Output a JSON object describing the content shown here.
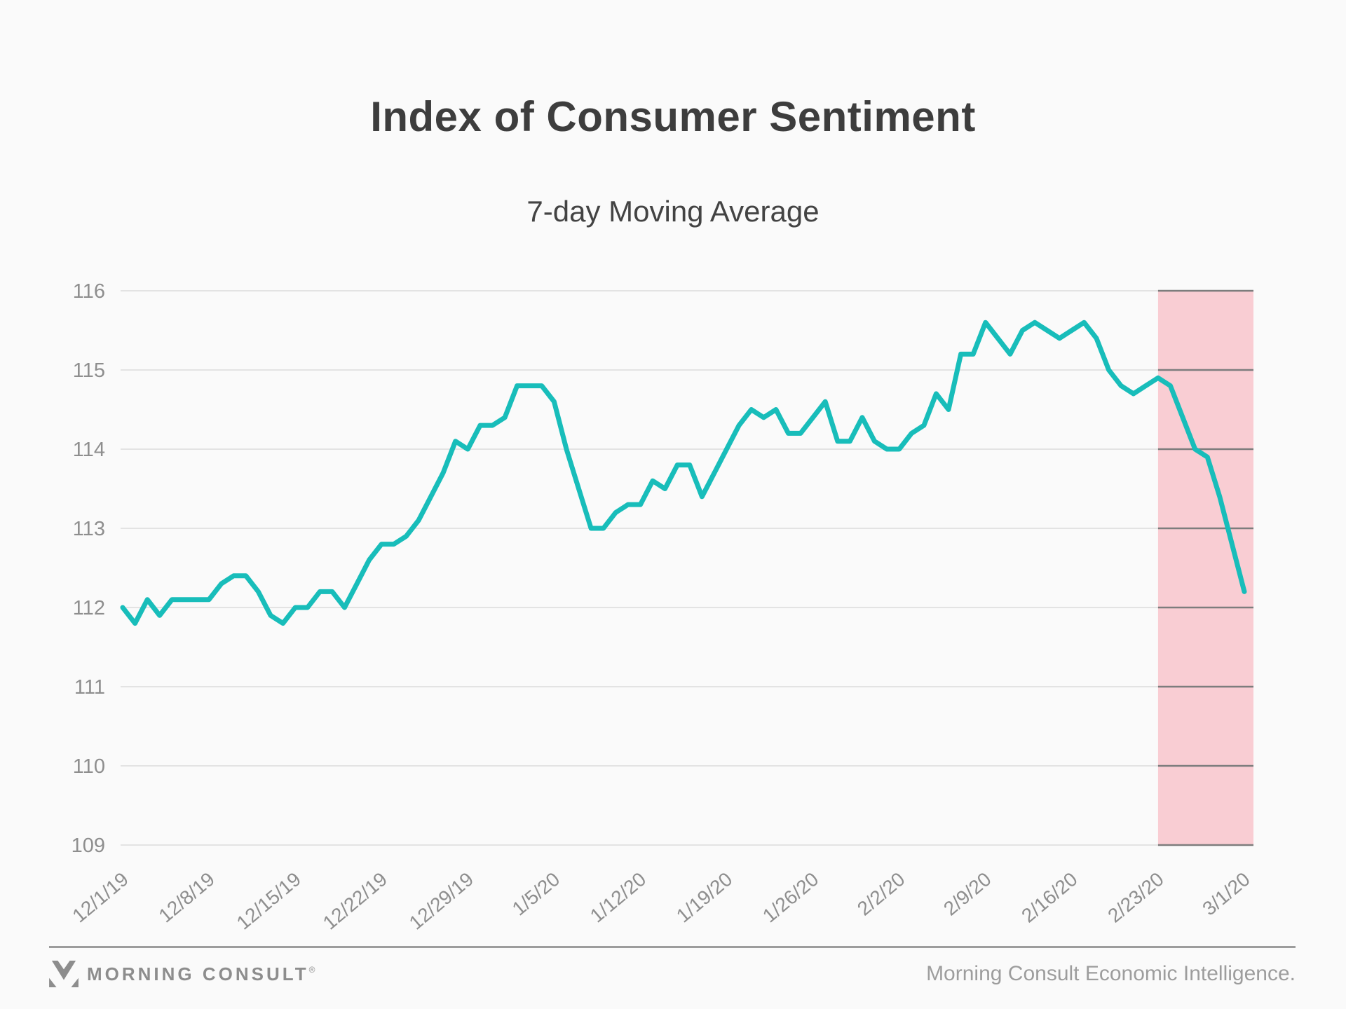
{
  "header": {
    "title": "Index of Consumer Sentiment",
    "subtitle": "7-day Moving Average"
  },
  "footer": {
    "brand": "MORNING CONSULT",
    "brand_reg": "®",
    "credit": "Morning Consult Economic Intelligence."
  },
  "colors": {
    "background": "#fafafa",
    "line": "#18bdba",
    "band": "#f9cdd3",
    "grid": "#e3e3e3",
    "grid_dark": "#7d7d7d",
    "axis_text": "#8e8e8e",
    "title_text": "#3d3d3d",
    "footer_text": "#9d9d9d"
  },
  "chart_data": {
    "type": "line",
    "title": "Index of Consumer Sentiment",
    "subtitle": "7-day Moving Average",
    "xlabel": "",
    "ylabel": "",
    "ylim": [
      109,
      116
    ],
    "yticks": [
      116,
      115,
      114,
      113,
      112,
      111,
      110,
      109
    ],
    "grid": true,
    "legend": "none",
    "frequency": "daily",
    "start_date": "12/1/19",
    "end_date": "3/1/20",
    "x_ticks": [
      {
        "index": 0,
        "label": "12/1/19"
      },
      {
        "index": 7,
        "label": "12/8/19"
      },
      {
        "index": 14,
        "label": "12/15/19"
      },
      {
        "index": 21,
        "label": "12/22/19"
      },
      {
        "index": 28,
        "label": "12/29/19"
      },
      {
        "index": 35,
        "label": "1/5/20"
      },
      {
        "index": 42,
        "label": "1/12/20"
      },
      {
        "index": 49,
        "label": "1/19/20"
      },
      {
        "index": 56,
        "label": "1/26/20"
      },
      {
        "index": 63,
        "label": "2/2/20"
      },
      {
        "index": 70,
        "label": "2/9/20"
      },
      {
        "index": 77,
        "label": "2/16/20"
      },
      {
        "index": 84,
        "label": "2/23/20"
      },
      {
        "index": 91,
        "label": "3/1/20"
      }
    ],
    "values": [
      112.0,
      111.8,
      112.1,
      111.9,
      112.1,
      112.1,
      112.1,
      112.1,
      112.3,
      112.4,
      112.4,
      112.2,
      111.9,
      111.8,
      112.0,
      112.0,
      112.2,
      112.2,
      112.0,
      112.3,
      112.6,
      112.8,
      112.8,
      112.9,
      113.1,
      113.4,
      113.7,
      114.1,
      114.0,
      114.3,
      114.3,
      114.4,
      114.8,
      114.8,
      114.8,
      114.6,
      114.0,
      113.5,
      113.0,
      113.0,
      113.2,
      113.3,
      113.3,
      113.6,
      113.5,
      113.8,
      113.8,
      113.4,
      113.7,
      114.0,
      114.3,
      114.5,
      114.4,
      114.5,
      114.2,
      114.2,
      114.4,
      114.6,
      114.1,
      114.1,
      114.4,
      114.1,
      114.0,
      114.0,
      114.2,
      114.3,
      114.7,
      114.5,
      115.2,
      115.2,
      115.6,
      115.4,
      115.2,
      115.5,
      115.6,
      115.5,
      115.4,
      115.5,
      115.6,
      115.4,
      115.0,
      114.8,
      114.7,
      114.8,
      114.9,
      114.8,
      114.4,
      114.0,
      113.9,
      113.4,
      112.8,
      112.2
    ],
    "highlight_band": {
      "start_label": "2/23/20",
      "start_index": 84,
      "extends_to": "right-edge"
    }
  }
}
